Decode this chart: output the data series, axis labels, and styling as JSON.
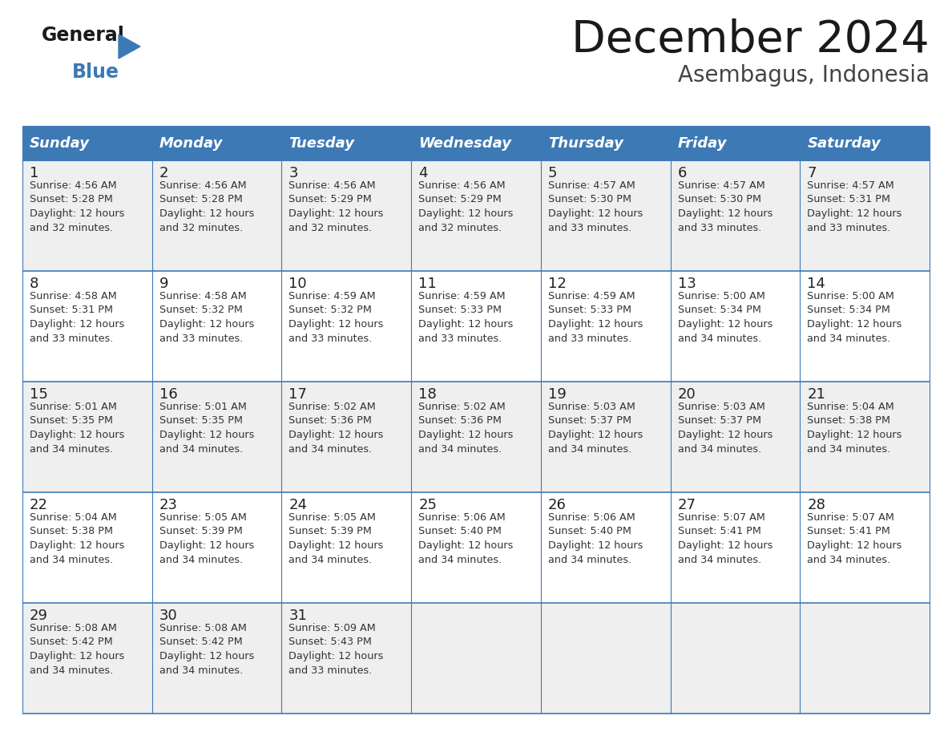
{
  "title": "December 2024",
  "subtitle": "Asembagus, Indonesia",
  "days_of_week": [
    "Sunday",
    "Monday",
    "Tuesday",
    "Wednesday",
    "Thursday",
    "Friday",
    "Saturday"
  ],
  "header_bg": "#3d7ab5",
  "header_text": "#FFFFFF",
  "cell_bg_even": "#FFFFFF",
  "cell_bg_odd": "#EFEFEF",
  "border_color": "#3d7ab5",
  "day_num_color": "#222222",
  "cell_text_color": "#333333",
  "title_color": "#1a1a1a",
  "subtitle_color": "#444444",
  "logo_general_color": "#1a1a1a",
  "logo_blue_color": "#3d7ab5",
  "calendar": [
    [
      {
        "day": "1",
        "sunrise": "4:56 AM",
        "sunset": "5:28 PM",
        "daylight_h": "12 hours",
        "daylight_m": "and 32 minutes."
      },
      {
        "day": "2",
        "sunrise": "4:56 AM",
        "sunset": "5:28 PM",
        "daylight_h": "12 hours",
        "daylight_m": "and 32 minutes."
      },
      {
        "day": "3",
        "sunrise": "4:56 AM",
        "sunset": "5:29 PM",
        "daylight_h": "12 hours",
        "daylight_m": "and 32 minutes."
      },
      {
        "day": "4",
        "sunrise": "4:56 AM",
        "sunset": "5:29 PM",
        "daylight_h": "12 hours",
        "daylight_m": "and 32 minutes."
      },
      {
        "day": "5",
        "sunrise": "4:57 AM",
        "sunset": "5:30 PM",
        "daylight_h": "12 hours",
        "daylight_m": "and 33 minutes."
      },
      {
        "day": "6",
        "sunrise": "4:57 AM",
        "sunset": "5:30 PM",
        "daylight_h": "12 hours",
        "daylight_m": "and 33 minutes."
      },
      {
        "day": "7",
        "sunrise": "4:57 AM",
        "sunset": "5:31 PM",
        "daylight_h": "12 hours",
        "daylight_m": "and 33 minutes."
      }
    ],
    [
      {
        "day": "8",
        "sunrise": "4:58 AM",
        "sunset": "5:31 PM",
        "daylight_h": "12 hours",
        "daylight_m": "and 33 minutes."
      },
      {
        "day": "9",
        "sunrise": "4:58 AM",
        "sunset": "5:32 PM",
        "daylight_h": "12 hours",
        "daylight_m": "and 33 minutes."
      },
      {
        "day": "10",
        "sunrise": "4:59 AM",
        "sunset": "5:32 PM",
        "daylight_h": "12 hours",
        "daylight_m": "and 33 minutes."
      },
      {
        "day": "11",
        "sunrise": "4:59 AM",
        "sunset": "5:33 PM",
        "daylight_h": "12 hours",
        "daylight_m": "and 33 minutes."
      },
      {
        "day": "12",
        "sunrise": "4:59 AM",
        "sunset": "5:33 PM",
        "daylight_h": "12 hours",
        "daylight_m": "and 33 minutes."
      },
      {
        "day": "13",
        "sunrise": "5:00 AM",
        "sunset": "5:34 PM",
        "daylight_h": "12 hours",
        "daylight_m": "and 34 minutes."
      },
      {
        "day": "14",
        "sunrise": "5:00 AM",
        "sunset": "5:34 PM",
        "daylight_h": "12 hours",
        "daylight_m": "and 34 minutes."
      }
    ],
    [
      {
        "day": "15",
        "sunrise": "5:01 AM",
        "sunset": "5:35 PM",
        "daylight_h": "12 hours",
        "daylight_m": "and 34 minutes."
      },
      {
        "day": "16",
        "sunrise": "5:01 AM",
        "sunset": "5:35 PM",
        "daylight_h": "12 hours",
        "daylight_m": "and 34 minutes."
      },
      {
        "day": "17",
        "sunrise": "5:02 AM",
        "sunset": "5:36 PM",
        "daylight_h": "12 hours",
        "daylight_m": "and 34 minutes."
      },
      {
        "day": "18",
        "sunrise": "5:02 AM",
        "sunset": "5:36 PM",
        "daylight_h": "12 hours",
        "daylight_m": "and 34 minutes."
      },
      {
        "day": "19",
        "sunrise": "5:03 AM",
        "sunset": "5:37 PM",
        "daylight_h": "12 hours",
        "daylight_m": "and 34 minutes."
      },
      {
        "day": "20",
        "sunrise": "5:03 AM",
        "sunset": "5:37 PM",
        "daylight_h": "12 hours",
        "daylight_m": "and 34 minutes."
      },
      {
        "day": "21",
        "sunrise": "5:04 AM",
        "sunset": "5:38 PM",
        "daylight_h": "12 hours",
        "daylight_m": "and 34 minutes."
      }
    ],
    [
      {
        "day": "22",
        "sunrise": "5:04 AM",
        "sunset": "5:38 PM",
        "daylight_h": "12 hours",
        "daylight_m": "and 34 minutes."
      },
      {
        "day": "23",
        "sunrise": "5:05 AM",
        "sunset": "5:39 PM",
        "daylight_h": "12 hours",
        "daylight_m": "and 34 minutes."
      },
      {
        "day": "24",
        "sunrise": "5:05 AM",
        "sunset": "5:39 PM",
        "daylight_h": "12 hours",
        "daylight_m": "and 34 minutes."
      },
      {
        "day": "25",
        "sunrise": "5:06 AM",
        "sunset": "5:40 PM",
        "daylight_h": "12 hours",
        "daylight_m": "and 34 minutes."
      },
      {
        "day": "26",
        "sunrise": "5:06 AM",
        "sunset": "5:40 PM",
        "daylight_h": "12 hours",
        "daylight_m": "and 34 minutes."
      },
      {
        "day": "27",
        "sunrise": "5:07 AM",
        "sunset": "5:41 PM",
        "daylight_h": "12 hours",
        "daylight_m": "and 34 minutes."
      },
      {
        "day": "28",
        "sunrise": "5:07 AM",
        "sunset": "5:41 PM",
        "daylight_h": "12 hours",
        "daylight_m": "and 34 minutes."
      }
    ],
    [
      {
        "day": "29",
        "sunrise": "5:08 AM",
        "sunset": "5:42 PM",
        "daylight_h": "12 hours",
        "daylight_m": "and 34 minutes."
      },
      {
        "day": "30",
        "sunrise": "5:08 AM",
        "sunset": "5:42 PM",
        "daylight_h": "12 hours",
        "daylight_m": "and 34 minutes."
      },
      {
        "day": "31",
        "sunrise": "5:09 AM",
        "sunset": "5:43 PM",
        "daylight_h": "12 hours",
        "daylight_m": "and 33 minutes."
      },
      null,
      null,
      null,
      null
    ]
  ]
}
